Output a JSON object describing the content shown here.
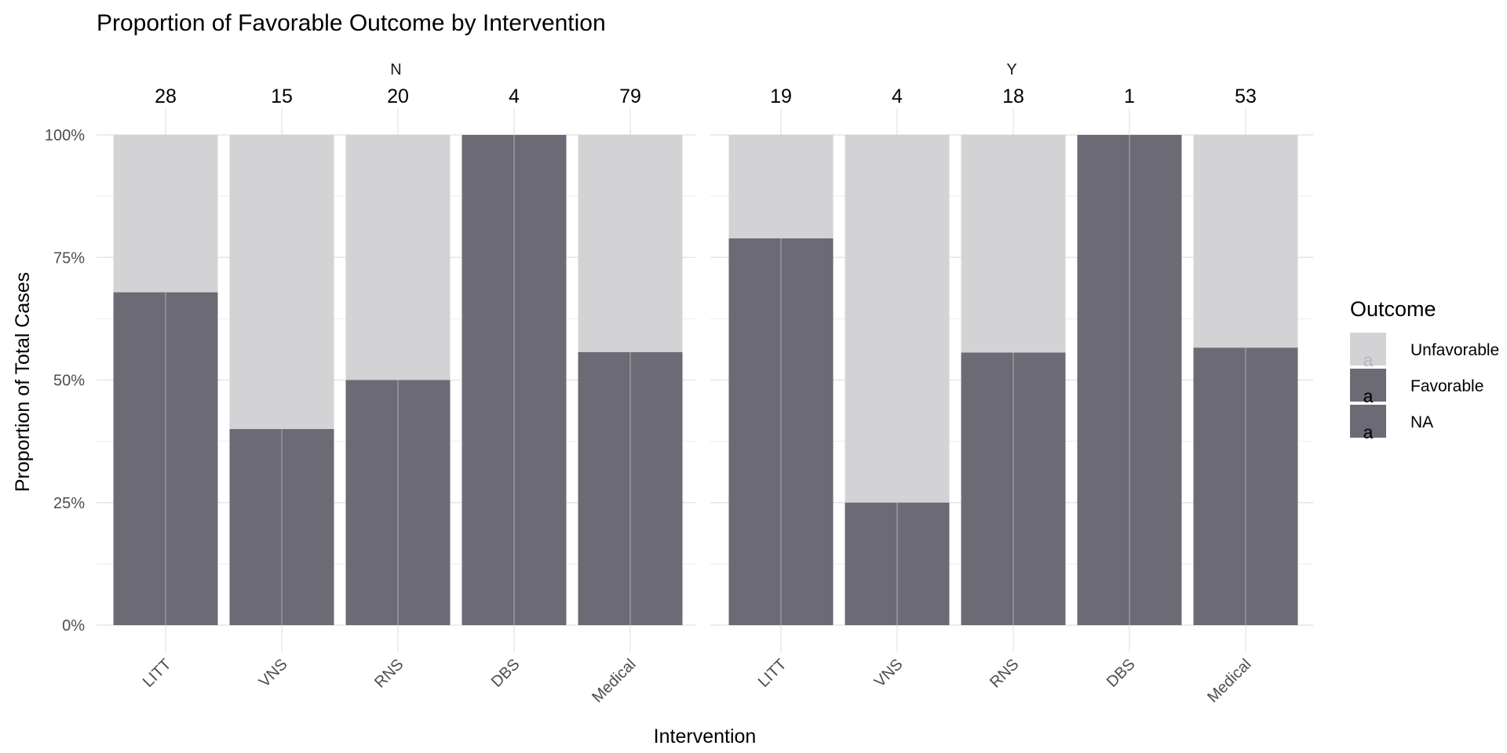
{
  "chart_data": {
    "type": "bar",
    "stacked": true,
    "title": "Proportion of Favorable Outcome by Intervention",
    "xlabel": "Intervention",
    "ylabel": "Proportion of Total Cases",
    "ylim": [
      0,
      1
    ],
    "y_ticks": [
      "0%",
      "25%",
      "50%",
      "75%",
      "100%"
    ],
    "grid": true,
    "legend": {
      "title": "Outcome",
      "position": "right",
      "glyph": "a",
      "entries": [
        {
          "name": "Unfavorable",
          "color": "#d3d3d6"
        },
        {
          "name": "Favorable",
          "color": "#6c6a74"
        },
        {
          "name": "NA",
          "color": "#6c6a74"
        }
      ]
    },
    "colors": {
      "favorable": "#6c6a74",
      "unfavorable": "#d3d3d6",
      "grid": "#e6e6e6"
    },
    "facets": [
      {
        "label": "N",
        "categories": [
          "LITT",
          "VNS",
          "RNS",
          "DBS",
          "Medical"
        ],
        "counts": [
          "28",
          "15",
          "20",
          "4",
          "79"
        ],
        "favorable": [
          0.679,
          0.4,
          0.5,
          1.0,
          0.557
        ]
      },
      {
        "label": "Y",
        "categories": [
          "LITT",
          "VNS",
          "RNS",
          "DBS",
          "Medical"
        ],
        "counts": [
          "19",
          "4",
          "18",
          "1",
          "53"
        ],
        "favorable": [
          0.789,
          0.25,
          0.556,
          1.0,
          0.566
        ]
      }
    ]
  }
}
